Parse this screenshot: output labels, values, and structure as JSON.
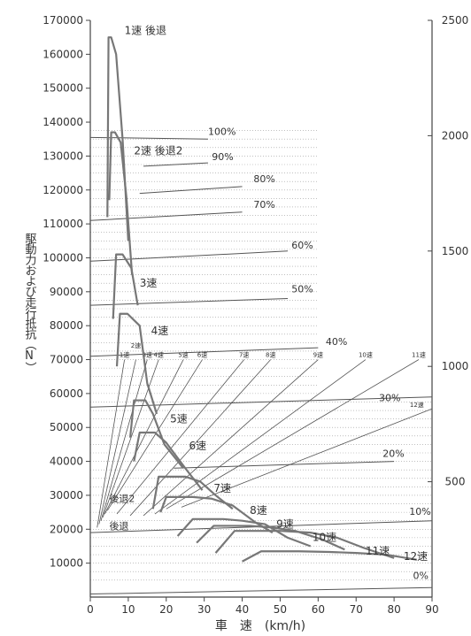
{
  "chart_data": {
    "type": "line",
    "xlabel": "車　速　(km/h)",
    "ylabel": "駆動力および走行抵抗（N）",
    "xlim": [
      0,
      90
    ],
    "ylim": [
      0,
      170000
    ],
    "y2lim": [
      0,
      2500
    ],
    "x_ticks": [
      0,
      10,
      20,
      30,
      40,
      50,
      60,
      70,
      80,
      90
    ],
    "y_ticks": [
      10000,
      20000,
      30000,
      40000,
      50000,
      60000,
      70000,
      80000,
      90000,
      100000,
      110000,
      120000,
      130000,
      140000,
      150000,
      160000,
      170000
    ],
    "y2_ticks": [
      500,
      1000,
      1500,
      2000,
      2500
    ],
    "grid": "dotted horizontal",
    "colors": {
      "curve": "#777777",
      "line": "#555555",
      "text": "#333333"
    },
    "gear_series": [
      {
        "name": "1速 後退",
        "label_at": [
          9,
          166000
        ],
        "points": [
          [
            4.5,
            112000
          ],
          [
            4.8,
            165000
          ],
          [
            5.5,
            165000
          ],
          [
            6.8,
            160000
          ],
          [
            8.5,
            135000
          ],
          [
            10,
            105000
          ]
        ]
      },
      {
        "name": "2速 後退2",
        "label_at": [
          11.5,
          130500
        ],
        "points": [
          [
            5.0,
            117000
          ],
          [
            5.5,
            137000
          ],
          [
            6.5,
            137000
          ],
          [
            8.0,
            134000
          ],
          [
            9.5,
            118000
          ],
          [
            11,
            95000
          ]
        ]
      },
      {
        "name": "3速",
        "label_at": [
          13,
          91500
        ],
        "points": [
          [
            6.0,
            82000
          ],
          [
            6.8,
            101000
          ],
          [
            8.5,
            101000
          ],
          [
            10.8,
            97000
          ],
          [
            12.5,
            86000
          ]
        ]
      },
      {
        "name": "4速",
        "label_at": [
          16,
          77500
        ],
        "points": [
          [
            7.0,
            68000
          ],
          [
            7.8,
            83500
          ],
          [
            9.8,
            83500
          ],
          [
            13.0,
            80000
          ],
          [
            15.0,
            63000
          ],
          [
            17.5,
            54000
          ]
        ]
      },
      {
        "name": "5速",
        "label_at": [
          21,
          51500
        ],
        "points": [
          [
            10.5,
            47000
          ],
          [
            11.5,
            58000
          ],
          [
            14.5,
            58000
          ],
          [
            16.5,
            54000
          ],
          [
            19.5,
            45000
          ],
          [
            24.5,
            38000
          ]
        ]
      },
      {
        "name": "6速",
        "label_at": [
          26,
          43500
        ],
        "points": [
          [
            11.5,
            40000
          ],
          [
            13,
            48500
          ],
          [
            17,
            48500
          ],
          [
            20.0,
            45500
          ],
          [
            25.0,
            38000
          ],
          [
            29.5,
            31500
          ]
        ]
      },
      {
        "name": "7速",
        "label_at": [
          32.5,
          31000
        ],
        "points": [
          [
            16.5,
            26000
          ],
          [
            18,
            35500
          ],
          [
            25,
            35500
          ],
          [
            29.0,
            34000
          ],
          [
            33.0,
            30000
          ],
          [
            37.5,
            26000
          ]
        ]
      },
      {
        "name": "8速",
        "label_at": [
          42,
          24500
        ],
        "points": [
          [
            18.5,
            25000
          ],
          [
            20,
            29500
          ],
          [
            27,
            29500
          ],
          [
            32.0,
            29000
          ],
          [
            37.5,
            27000
          ],
          [
            43.5,
            22000
          ],
          [
            48.0,
            19000
          ]
        ]
      },
      {
        "name": "9速",
        "label_at": [
          49,
          20500
        ],
        "points": [
          [
            23,
            18000
          ],
          [
            27,
            23000
          ],
          [
            35,
            23000
          ],
          [
            40.0,
            22500
          ],
          [
            46.0,
            21500
          ],
          [
            52.0,
            17500
          ],
          [
            58.0,
            15000
          ]
        ]
      },
      {
        "name": "10速",
        "label_at": [
          58.5,
          16500
        ],
        "points": [
          [
            28,
            16000
          ],
          [
            32.5,
            21000
          ],
          [
            42,
            21000
          ],
          [
            48.0,
            20500
          ],
          [
            54.0,
            19500
          ],
          [
            61.0,
            17000
          ],
          [
            67.0,
            14000
          ]
        ]
      },
      {
        "name": "11速",
        "label_at": [
          72.5,
          12500
        ],
        "points": [
          [
            33,
            13000
          ],
          [
            38,
            19500
          ],
          [
            50,
            19500
          ],
          [
            58.0,
            19000
          ],
          [
            65.0,
            17500
          ],
          [
            72.0,
            14500
          ],
          [
            80.0,
            11500
          ]
        ]
      },
      {
        "name": "12速",
        "label_at": [
          82.5,
          11000
        ],
        "points": [
          [
            40,
            10500
          ],
          [
            45,
            13500
          ],
          [
            55,
            13500
          ],
          [
            63.0,
            13300
          ],
          [
            70.0,
            13000
          ],
          [
            78.0,
            12500
          ],
          [
            86.0,
            11000
          ]
        ]
      }
    ],
    "resistance_lines": [
      {
        "label": "100%",
        "label_at": [
          31,
          135500
        ],
        "points": [
          [
            0,
            135500
          ],
          [
            31,
            135000
          ]
        ]
      },
      {
        "label": "90%",
        "label_at": [
          32,
          128000
        ],
        "points": [
          [
            14,
            127000
          ],
          [
            31,
            128000
          ]
        ]
      },
      {
        "label": "80%",
        "label_at": [
          43,
          121500
        ],
        "points": [
          [
            13,
            119000
          ],
          [
            40,
            121000
          ]
        ]
      },
      {
        "label": "70%",
        "label_at": [
          43,
          114000
        ],
        "points": [
          [
            0,
            111000
          ],
          [
            40,
            113500
          ]
        ]
      },
      {
        "label": "60%",
        "label_at": [
          53,
          102000
        ],
        "points": [
          [
            0,
            99000
          ],
          [
            52,
            102000
          ]
        ]
      },
      {
        "label": "50%",
        "label_at": [
          53,
          89000
        ],
        "points": [
          [
            0,
            86000
          ],
          [
            52,
            88000
          ]
        ]
      },
      {
        "label": "40%",
        "label_at": [
          62,
          73500
        ],
        "points": [
          [
            0,
            71000
          ],
          [
            60,
            73500
          ]
        ]
      },
      {
        "label": "30%",
        "label_at": [
          76,
          57000
        ],
        "points": [
          [
            0,
            56000
          ],
          [
            90,
            59000
          ]
        ]
      },
      {
        "label": "20%",
        "label_at": [
          77,
          40500
        ],
        "points": [
          [
            22,
            38000
          ],
          [
            80,
            40000
          ]
        ]
      },
      {
        "label": "10%",
        "label_at": [
          84,
          23500
        ],
        "points": [
          [
            0,
            19000
          ],
          [
            90,
            22500
          ]
        ]
      },
      {
        "label": "0%",
        "label_at": [
          85,
          4500
        ],
        "points": [
          [
            0,
            900
          ],
          [
            90,
            2800
          ]
        ]
      }
    ],
    "speed_rays": [
      {
        "label": "1速",
        "label_at": [
          9.0,
          70800
        ],
        "points": [
          [
            9.0,
            70000
          ],
          [
            1.8,
            20500
          ]
        ]
      },
      {
        "label": "2速",
        "label_at": [
          12.0,
          73500
        ],
        "points": [
          [
            12.0,
            70000
          ],
          [
            2.3,
            21500
          ]
        ]
      },
      {
        "label": "3速",
        "label_at": [
          15.0,
          70800
        ],
        "points": [
          [
            15.0,
            70000
          ],
          [
            2.8,
            22500
          ]
        ]
      },
      {
        "label": "4速",
        "label_at": [
          18.0,
          70800
        ],
        "points": [
          [
            18.0,
            70000
          ],
          [
            3.3,
            23500
          ]
        ]
      },
      {
        "label": "5速",
        "label_at": [
          24.5,
          70800
        ],
        "points": [
          [
            24.5,
            70000
          ],
          [
            3.8,
            24500
          ]
        ]
      },
      {
        "label": "6速",
        "label_at": [
          29.5,
          70800
        ],
        "points": [
          [
            29.5,
            70000
          ],
          [
            4.5,
            25500
          ]
        ]
      },
      {
        "label": "7速",
        "label_at": [
          40.5,
          70800
        ],
        "points": [
          [
            40.5,
            70000
          ],
          [
            7.0,
            24500
          ]
        ]
      },
      {
        "label": "8速",
        "label_at": [
          47.5,
          70800
        ],
        "points": [
          [
            47.5,
            70000
          ],
          [
            10.5,
            24000
          ]
        ]
      },
      {
        "label": "9速",
        "label_at": [
          60.0,
          70800
        ],
        "points": [
          [
            60.0,
            70000
          ],
          [
            14.0,
            24000
          ]
        ]
      },
      {
        "label": "10速",
        "label_at": [
          72.5,
          70800
        ],
        "points": [
          [
            72.5,
            70000
          ],
          [
            17.0,
            24500
          ]
        ]
      },
      {
        "label": "11速",
        "label_at": [
          86.5,
          70800
        ],
        "points": [
          [
            86.5,
            70000
          ],
          [
            20.0,
            26000
          ]
        ]
      },
      {
        "label": "12速",
        "label_at": [
          86.0,
          56000
        ],
        "points": [
          [
            90,
            55500
          ],
          [
            24.0,
            26500
          ]
        ]
      }
    ],
    "annotations": [
      {
        "text": "後退2",
        "at": [
          5,
          28000
        ]
      },
      {
        "text": "後退",
        "at": [
          5,
          20000
        ]
      }
    ]
  }
}
